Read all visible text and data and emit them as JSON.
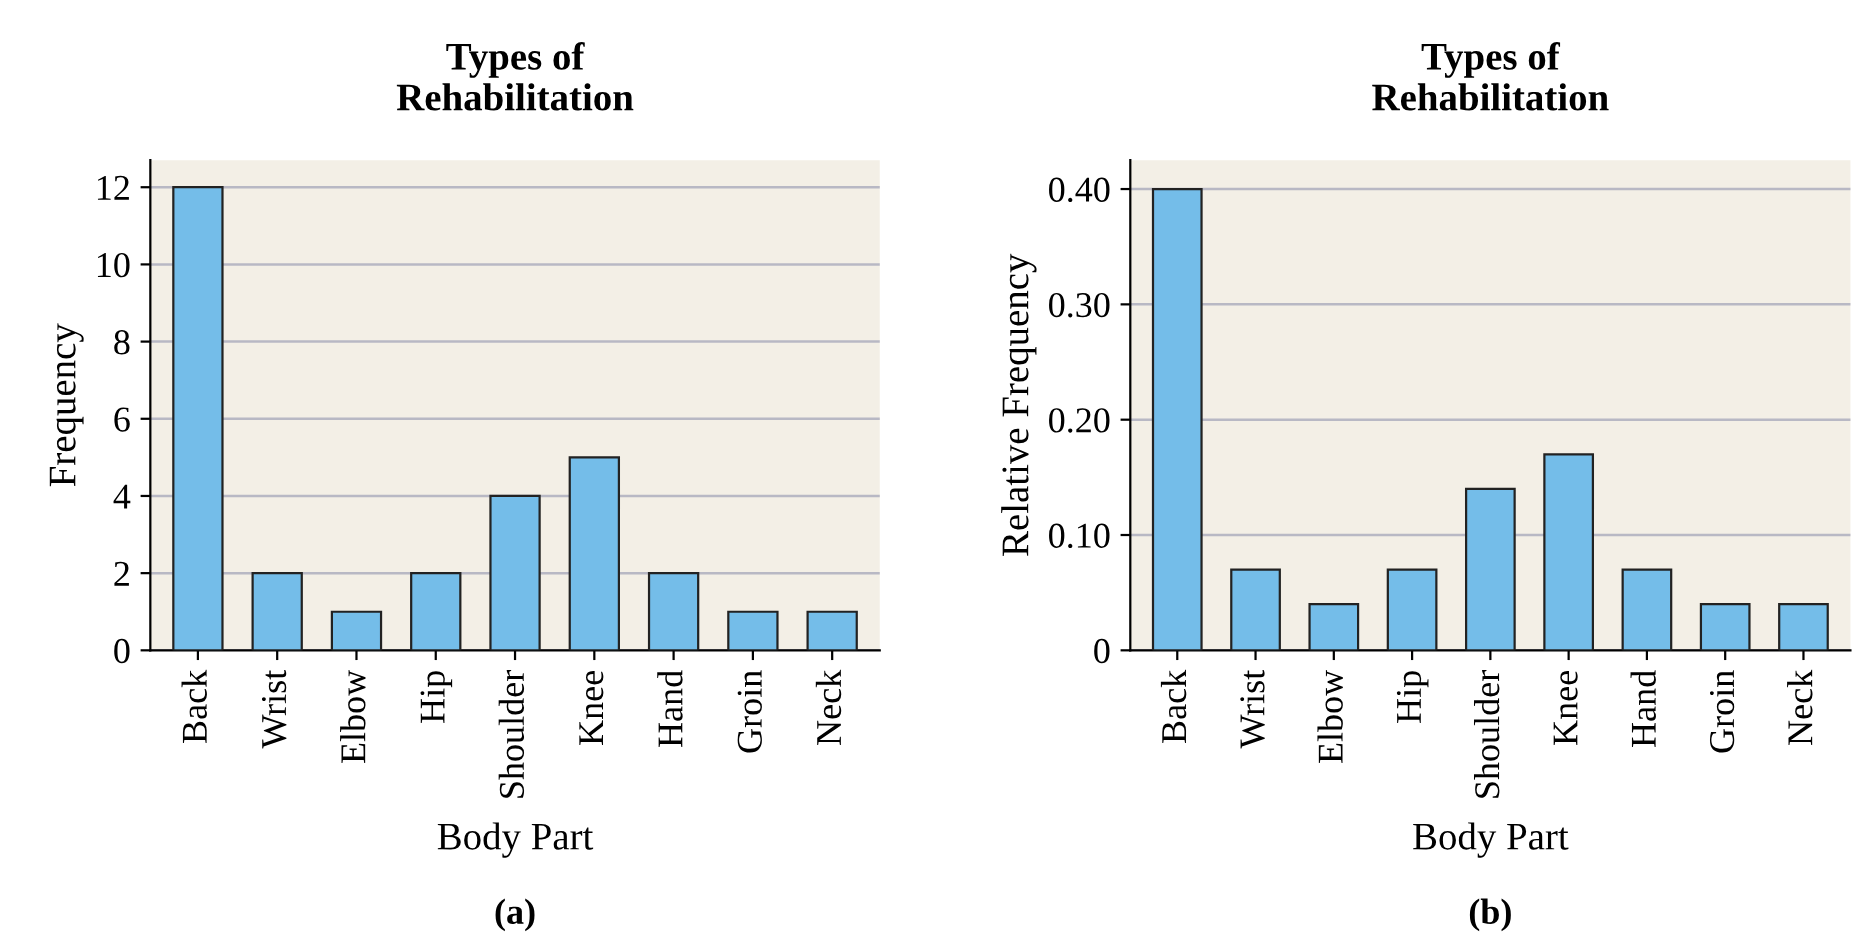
{
  "chart_data": [
    {
      "type": "bar",
      "title": "Types of\nRehabilitation",
      "xlabel": "Body Part",
      "ylabel": "Frequency",
      "categories": [
        "Back",
        "Wrist",
        "Elbow",
        "Hip",
        "Shoulder",
        "Knee",
        "Hand",
        "Groin",
        "Neck"
      ],
      "values": [
        12,
        2,
        1,
        2,
        4,
        5,
        2,
        1,
        1
      ],
      "color": "#74bde9",
      "ylim": [
        0,
        12.7
      ],
      "yticks": [
        0,
        2,
        4,
        6,
        8,
        10,
        12
      ],
      "grid": "y",
      "annotations": [
        "(a)"
      ]
    },
    {
      "type": "bar",
      "title": "Types of\nRehabilitation",
      "xlabel": "Body Part",
      "ylabel": "Relative Frequency",
      "categories": [
        "Back",
        "Wrist",
        "Elbow",
        "Hip",
        "Shoulder",
        "Knee",
        "Hand",
        "Groin",
        "Neck"
      ],
      "values": [
        0.4,
        0.07,
        0.04,
        0.07,
        0.14,
        0.17,
        0.07,
        0.04,
        0.04
      ],
      "color": "#74bde9",
      "ylim": [
        0,
        0.425
      ],
      "yticks": [
        0,
        {
          "value": 0.1,
          "label": "0.10"
        },
        {
          "value": 0.2,
          "label": "0.20"
        },
        {
          "value": 0.3,
          "label": "0.30"
        },
        {
          "value": 0.4,
          "label": "0.40"
        }
      ],
      "grid": "y",
      "annotations": [
        "(b)"
      ]
    }
  ]
}
